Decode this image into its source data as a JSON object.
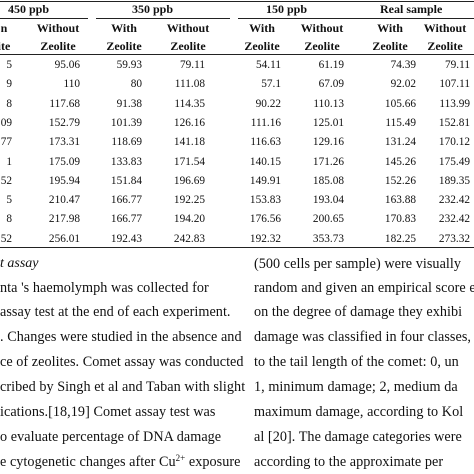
{
  "table": {
    "group_headers": [
      "450 ppb",
      "350 ppb",
      "150 ppb",
      "Real sample"
    ],
    "sub_headers_row1": [
      "n",
      "Without",
      "With",
      "Without",
      "With",
      "Without",
      "With",
      "Without"
    ],
    "sub_headers_row2": [
      "ite",
      "Zeolite",
      "Zeolite",
      "Zeolite",
      "Zeolite",
      "Zeolite",
      "Zeolite",
      "Zeolite"
    ],
    "rows": [
      [
        "5",
        "95.06",
        "59.93",
        "79.11",
        "54.11",
        "61.19",
        "74.39",
        "79.11"
      ],
      [
        "9",
        "110",
        "80",
        "111.08",
        "57.1",
        "67.09",
        "92.02",
        "107.11"
      ],
      [
        "8",
        "117.68",
        "91.38",
        "114.35",
        "90.22",
        "110.13",
        "105.66",
        "113.99"
      ],
      [
        "09",
        "152.79",
        "101.39",
        "126.16",
        "111.16",
        "125.01",
        "115.49",
        "152.81"
      ],
      [
        "77",
        "173.31",
        "118.69",
        "141.18",
        "116.63",
        "129.16",
        "131.24",
        "170.12"
      ],
      [
        "1",
        "175.09",
        "133.83",
        "171.54",
        "140.15",
        "171.26",
        "145.26",
        "175.49"
      ],
      [
        "52",
        "195.94",
        "151.84",
        "196.69",
        "149.91",
        "185.08",
        "152.26",
        "189.35"
      ],
      [
        "5",
        "210.47",
        "166.77",
        "192.25",
        "153.83",
        "193.04",
        "163.88",
        "232.42"
      ],
      [
        "8",
        "217.98",
        "166.77",
        "194.20",
        "176.56",
        "200.65",
        "170.83",
        "232.42"
      ],
      [
        "52",
        "256.01",
        "192.43",
        "242.83",
        "192.32",
        "353.73",
        "182.25",
        "273.32"
      ]
    ]
  },
  "left_column": {
    "caption": "t assay",
    "lines": [
      "nta 's haemolymph was collected  for",
      "assay test at the end of each experiment.",
      ". Changes were studied in the absence and",
      "ce of zeolites. Comet assay was conducted",
      "cribed by Singh et al and Taban with slight",
      "ications.[18,19]   Comet  assay  test  was",
      "o  evaluate  percentage  of  DNA  damage",
      "e cytogenetic changes after Cu",
      "2+",
      " exposure"
    ]
  },
  "right_column": {
    "lines": [
      "(500 cells per sample) were visually",
      "random and given an empirical score e",
      "on the degree of damage they exhibi",
      "damage was classified in four classes,",
      "to the tail length of the comet: 0, un",
      "1, minimum damage; 2, medium da",
      "maximum damage, according to Kol",
      "al [20]. The damage categories were",
      "according  to  the approximate  per"
    ]
  }
}
